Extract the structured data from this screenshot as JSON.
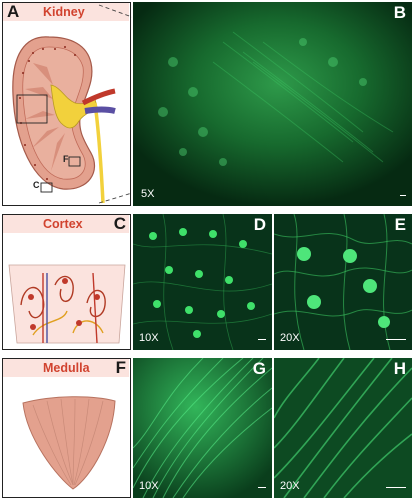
{
  "figure": {
    "rows": [
      {
        "title": "Kidney",
        "label_letter": "A"
      },
      {
        "title": "Cortex",
        "label_letter": "C"
      },
      {
        "title": "Medulla",
        "label_letter": "F"
      }
    ],
    "micrographs": [
      {
        "letter": "B",
        "magnification": "5X"
      },
      {
        "letter": "D",
        "magnification": "10X"
      },
      {
        "letter": "E",
        "magnification": "20X"
      },
      {
        "letter": "G",
        "magnification": "10X"
      },
      {
        "letter": "H",
        "magnification": "20X"
      }
    ],
    "kidney_region_labels": {
      "cortex": "C",
      "medulla": "F"
    },
    "colors": {
      "label_text": "#d1432f",
      "label_bg": "#fbe3de",
      "tissue": "#e3a18e",
      "fluorescence": "#2fc25a",
      "background_dark": "#062a12"
    }
  }
}
